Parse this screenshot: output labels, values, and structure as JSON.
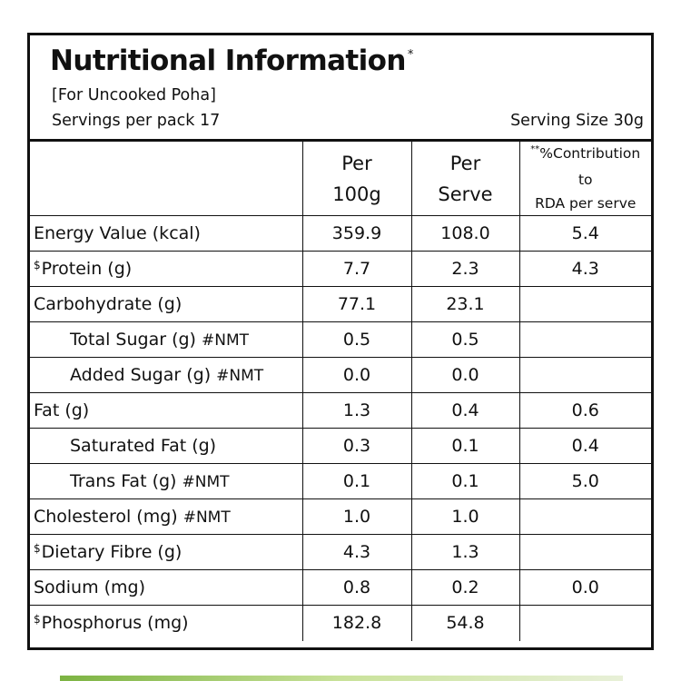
{
  "header": {
    "title": "Nutritional Information",
    "title_mark": "*",
    "subtitle": "[For Uncooked Poha]",
    "servings_per_pack": "Servings per pack 17",
    "serving_size": "Serving Size 30g"
  },
  "columns": {
    "per100_line1": "Per",
    "per100_line2": "100g",
    "perserve_line1": "Per",
    "perserve_line2": "Serve",
    "rda_mark": "**",
    "rda_line1": "%Contribution to",
    "rda_line2": "RDA per serve"
  },
  "rows": [
    {
      "mark": "",
      "label": "Energy Value (kcal)",
      "suffix": "",
      "per100": "359.9",
      "perserve": "108.0",
      "rda": "5.4"
    },
    {
      "mark": "$",
      "label": "Protein (g)",
      "suffix": "",
      "per100": "7.7",
      "perserve": "2.3",
      "rda": "4.3"
    },
    {
      "mark": "",
      "label": "Carbohydrate (g)",
      "suffix": "",
      "per100": "77.1",
      "perserve": "23.1",
      "rda": ""
    },
    {
      "mark": "",
      "label": "Total Sugar (g)",
      "suffix": "#NMT",
      "per100": "0.5",
      "perserve": "0.5",
      "rda": ""
    },
    {
      "mark": "",
      "label": "Added Sugar (g)",
      "suffix": "#NMT",
      "per100": "0.0",
      "perserve": "0.0",
      "rda": ""
    },
    {
      "mark": "",
      "label": "Fat (g)",
      "suffix": "",
      "per100": "1.3",
      "perserve": "0.4",
      "rda": "0.6"
    },
    {
      "mark": "",
      "label": "Saturated Fat (g)",
      "suffix": "",
      "per100": "0.3",
      "perserve": "0.1",
      "rda": "0.4"
    },
    {
      "mark": "",
      "label": "Trans Fat (g)",
      "suffix": "#NMT",
      "per100": "0.1",
      "perserve": "0.1",
      "rda": "5.0"
    },
    {
      "mark": "",
      "label": "Cholesterol (mg)",
      "suffix": "#NMT",
      "per100": "1.0",
      "perserve": "1.0",
      "rda": ""
    },
    {
      "mark": "$",
      "label": "Dietary Fibre (g)",
      "suffix": "",
      "per100": "4.3",
      "perserve": "1.3",
      "rda": ""
    },
    {
      "mark": "",
      "label": "Sodium (mg)",
      "suffix": "",
      "per100": "0.8",
      "perserve": "0.2",
      "rda": "0.0"
    },
    {
      "mark": "$",
      "label": "Phosphorus (mg)",
      "suffix": "",
      "per100": "182.8",
      "perserve": "54.8",
      "rda": ""
    }
  ]
}
